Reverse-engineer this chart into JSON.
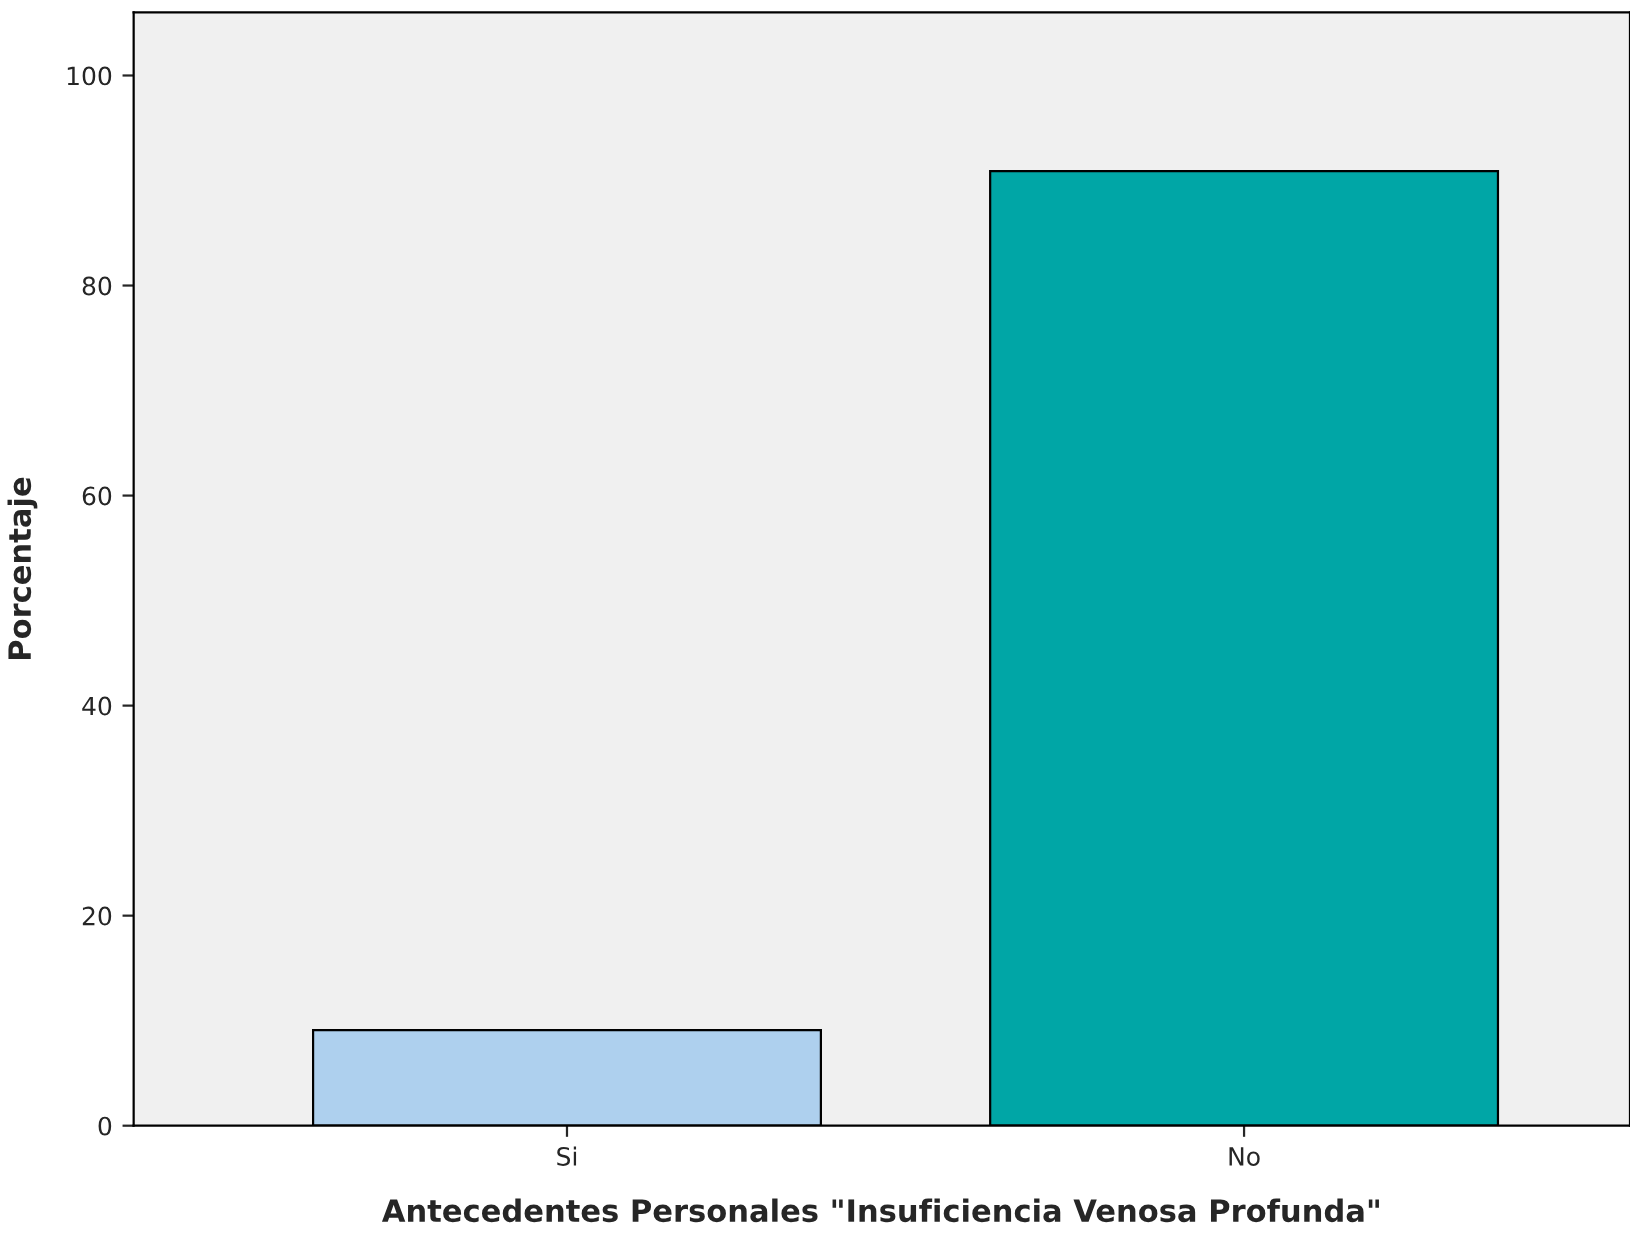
{
  "chart_data": {
    "type": "bar",
    "xlabel": "Antecedentes Personales \"Insuficiencia Venosa Profunda\"",
    "ylabel": "Porcentaje",
    "categories": [
      "Si",
      "No"
    ],
    "values": [
      9.1,
      90.9
    ],
    "colors": [
      "#aed0ee",
      "#00a6a6"
    ],
    "ylim": [
      0,
      106
    ],
    "yticks": [
      0,
      20,
      40,
      60,
      80,
      100
    ],
    "grid": false,
    "legend": false
  }
}
